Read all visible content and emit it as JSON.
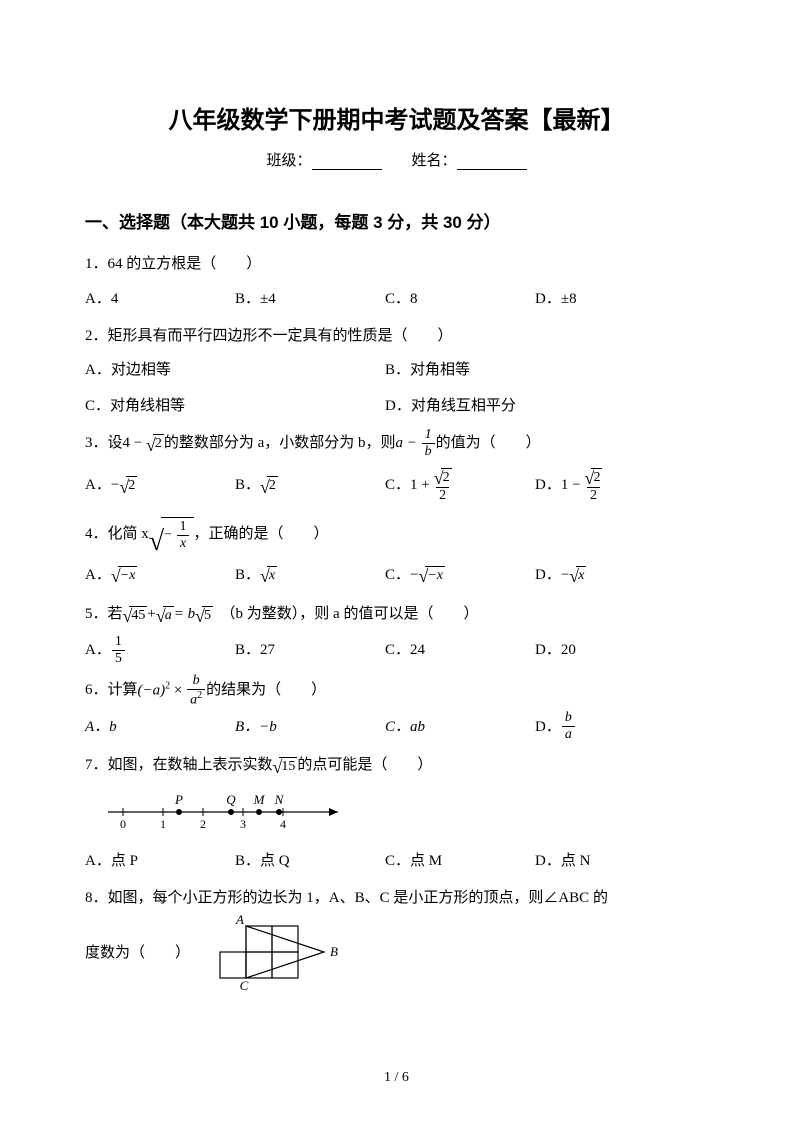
{
  "title": "八年级数学下册期中考试题及答案【最新】",
  "info": {
    "class_label": "班级：",
    "name_label": "姓名："
  },
  "section1": "一、选择题（本大题共 10 小题，每题 3 分，共 30 分）",
  "q1": {
    "stem": "1．64 的立方根是（　　）",
    "A": "A．4",
    "B": "B．±4",
    "C": "C．8",
    "D": "D．±8"
  },
  "q2": {
    "stem": "2．矩形具有而平行四边形不一定具有的性质是（　　）",
    "A": "A．对边相等",
    "B": "B．对角相等",
    "C": "C．对角线相等",
    "D": "D．对角线互相平分"
  },
  "q3": {
    "p1": "3．设",
    "p2": "的整数部分为 a，小数部分为 b，则",
    "p3": "的值为（　　）",
    "expr1_pre": "4 − ",
    "expr1_rad": "2",
    "expr2_a": "a − ",
    "frac_num": "1",
    "frac_den": "b",
    "A_pre": "A．",
    "A_sign": "−",
    "A_rad": "2",
    "B_pre": "B．",
    "B_rad": "2",
    "C_pre": "C．1 + ",
    "C_num_rad": "2",
    "C_den": "2",
    "D_pre": "D．1 − ",
    "D_num_rad": "2",
    "D_den": "2"
  },
  "q4": {
    "p1": "4．化简 x",
    "p2": "，正确的是（　　）",
    "rad_num": "1",
    "rad_den_pre": "− ",
    "rad_den": "x",
    "A_pre": "A．",
    "A_body": "−x",
    "B_pre": "B．",
    "B_body": "x",
    "C_pre": "C．− ",
    "C_body": "−x",
    "D_pre": "D．− ",
    "D_body": "x"
  },
  "q5": {
    "p1": "5．若 ",
    "rad1": "45",
    "plus": " + ",
    "rad2": "a",
    "p2": " = b",
    "rad3": "5",
    "p3": "　（b 为整数），则 a 的值可以是（　　）",
    "A_pre": "A．",
    "A_num": "1",
    "A_den": "5",
    "B": "B．27",
    "C": "C．24",
    "D": "D．20"
  },
  "q6": {
    "p1": "6．计算",
    "expr_l": "(−a)",
    "sup": "2",
    "times": " × ",
    "f_num": "b",
    "f_den": "a",
    "f_den_sup": "2",
    "p2": " 的结果为（　　）",
    "A": "A．b",
    "B": "B．−b",
    "C": "C．ab",
    "D_pre": "D．",
    "D_num": "b",
    "D_den": "a"
  },
  "q7": {
    "p1": "7．如图，在数轴上表示实数",
    "rad": "15",
    "p2": "的点可能是（　　）",
    "A": "A．点 P",
    "B": "B．点 Q",
    "C": "C．点 M",
    "D": "D．点 N",
    "nl": {
      "ticks": [
        0,
        1,
        2,
        3,
        4
      ],
      "P": 1.4,
      "Q": 2.7,
      "M": 3.4,
      "N": 3.9,
      "axis_color": "#000000"
    }
  },
  "q8": {
    "stem1": "8．如图，每个小正方形的边长为 1，A、B、C 是小正方形的顶点，则∠ABC 的",
    "stem2": "度数为（　　）",
    "grid": {
      "cell": 26,
      "cols": 4,
      "rows": 2,
      "A": [
        1,
        0
      ],
      "B": [
        4,
        1
      ],
      "C": [
        1,
        2
      ]
    }
  },
  "footer": "1 / 6",
  "colors": {
    "text": "#000000",
    "bg": "#ffffff"
  }
}
